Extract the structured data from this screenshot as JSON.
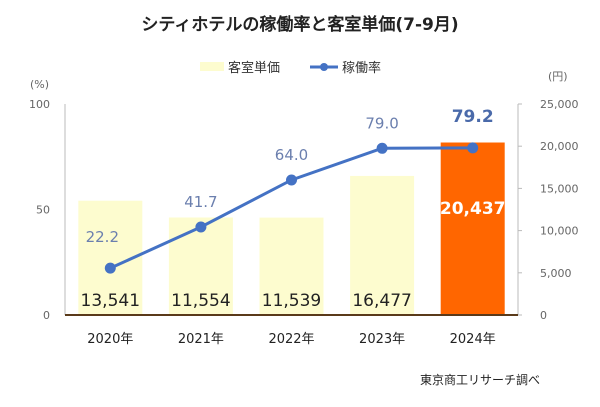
{
  "chart_data": {
    "type": "bar",
    "title": "シティホテルの稼働率と客室単価(7-9月)",
    "categories": [
      "2020年",
      "2021年",
      "2022年",
      "2023年",
      "2024年"
    ],
    "series": [
      {
        "name": "客室単価",
        "type": "bar",
        "axis": "right",
        "values": [
          13541,
          11554,
          11539,
          16477,
          20437
        ],
        "labels": [
          "13,541",
          "11,554",
          "11,539",
          "16,477",
          "20,437"
        ],
        "color": "#fdfccf",
        "highlight_color": "#ff6600",
        "highlight_index": 4
      },
      {
        "name": "稼働率",
        "type": "line",
        "axis": "left",
        "values": [
          22.2,
          41.7,
          64.0,
          79.0,
          79.2
        ],
        "labels": [
          "22.2",
          "41.7",
          "64.0",
          "79.0",
          "79.2"
        ],
        "color": "#4472c4"
      }
    ],
    "left_axis": {
      "unit": "(%)",
      "ylim": [
        0,
        100
      ],
      "ticks": [
        "0",
        "50",
        "100"
      ],
      "tick_values": [
        0,
        50,
        100
      ]
    },
    "right_axis": {
      "unit": "(円)",
      "ylim": [
        0,
        25000
      ],
      "ticks": [
        "0",
        "5,000",
        "10,000",
        "15,000",
        "20,000",
        "25,000"
      ],
      "tick_values": [
        0,
        5000,
        10000,
        15000,
        20000,
        25000
      ]
    },
    "legend": {
      "position": "top",
      "entries": [
        "客室単価",
        "稼働率"
      ]
    },
    "grid": false,
    "source": "東京商工リサーチ調べ"
  }
}
